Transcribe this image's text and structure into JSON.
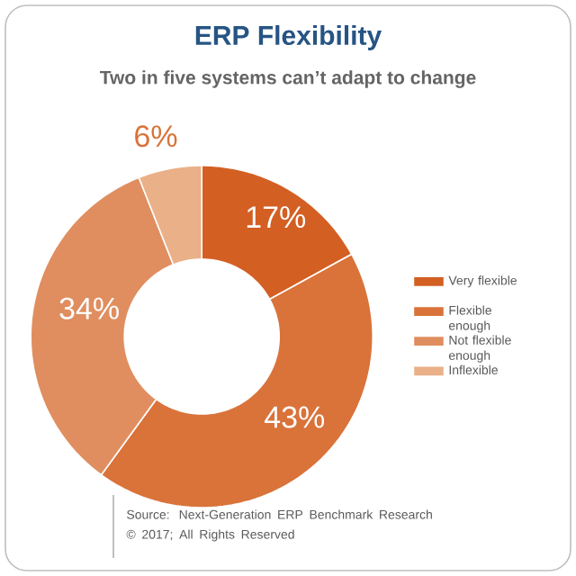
{
  "chart_data": {
    "type": "donut",
    "title": "ERP Flexibility",
    "subtitle": "Two in five systems can’t adapt to change",
    "categories": [
      "Very flexible",
      "Flexible enough",
      "Not flexible enough",
      "Inflexible"
    ],
    "values": [
      17,
      43,
      34,
      6
    ],
    "colors": [
      "#d35f23",
      "#d9733a",
      "#e08e5f",
      "#eab088"
    ],
    "value_labels": [
      "17%",
      "43%",
      "34%",
      "6%"
    ],
    "legend": "right",
    "annotations": [
      "Source: Next-Generation ERP Benchmark Research",
      "© 2017; All Rights Reserved"
    ]
  }
}
